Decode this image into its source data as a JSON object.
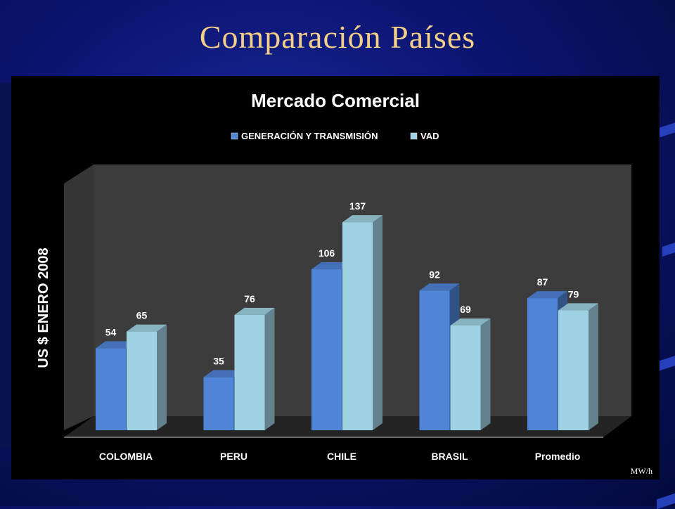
{
  "slide": {
    "title": "Comparación Países",
    "unit_note": "MW/h"
  },
  "colors": {
    "series_gen": "#4f84d6",
    "series_vad": "#9fd2e3",
    "plot_bg": "#3c3c3c",
    "chart_bg": "#000000",
    "title_color": "#f3cf88"
  },
  "chart_data": {
    "type": "bar",
    "title": "Mercado Comercial",
    "ylabel": "US $ ENERO 2008",
    "xlabel": "",
    "categories": [
      "COLOMBIA",
      "PERU",
      "CHILE",
      "BRASIL",
      "Promedio"
    ],
    "series": [
      {
        "name": "GENERACIÓN Y TRANSMISIÓN",
        "values": [
          54,
          35,
          106,
          92,
          87
        ]
      },
      {
        "name": "VAD",
        "values": [
          65,
          76,
          137,
          69,
          79
        ]
      }
    ],
    "ylim": [
      0,
      150
    ],
    "grid": false,
    "legend": "top",
    "data_labels": true,
    "style": "3d-column"
  }
}
